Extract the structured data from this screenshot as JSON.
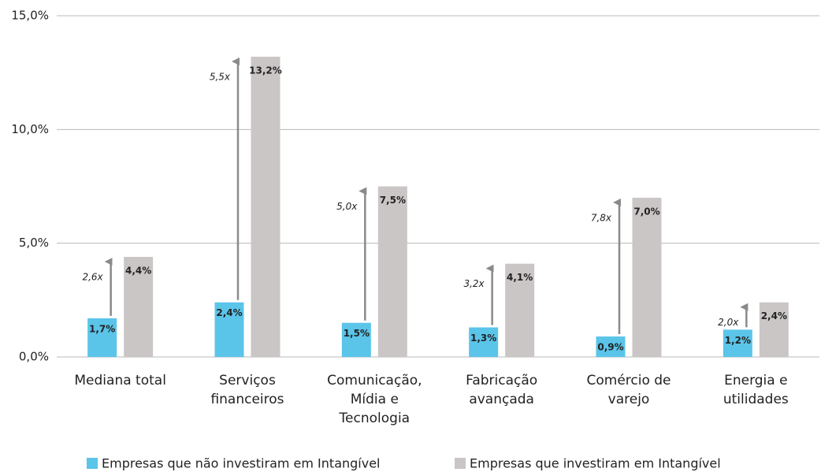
{
  "chart_data": {
    "type": "bar",
    "categories": [
      [
        "Mediana total"
      ],
      [
        "Serviços",
        "financeiros"
      ],
      [
        "Comunicação,",
        "Mídia e",
        "Tecnologia"
      ],
      [
        "Fabricação",
        "avançada"
      ],
      [
        "Comércio de",
        "varejo"
      ],
      [
        "Energia e",
        "utilidades"
      ]
    ],
    "series": [
      {
        "name": "Empresas que não investiram em Intangível",
        "color": "#5bc4e9",
        "values": [
          1.7,
          2.4,
          1.5,
          1.3,
          0.9,
          1.2
        ],
        "value_labels": [
          "1,7%",
          "2,4%",
          "1,5%",
          "1,3%",
          "0,9%",
          "1,2%"
        ]
      },
      {
        "name": "Empresas que investiram em Intangível",
        "color": "#cac6c6",
        "values": [
          4.4,
          13.2,
          7.5,
          4.1,
          7.0,
          2.4
        ],
        "value_labels": [
          "4,4%",
          "13,2%",
          "7,5%",
          "4,1%",
          "7,0%",
          "2,4%"
        ]
      }
    ],
    "annotations": [
      "2,6x",
      "5,5x",
      "5,0x",
      "3,2x",
      "7,8x",
      "2,0x"
    ],
    "ylim": [
      0,
      15
    ],
    "yticks": [
      {
        "value": 0,
        "label": "0,0%"
      },
      {
        "value": 5,
        "label": "5,0%"
      },
      {
        "value": 10,
        "label": "10,0%"
      },
      {
        "value": 15,
        "label": "15,0%"
      }
    ],
    "grid": true,
    "legend": "bottom"
  }
}
